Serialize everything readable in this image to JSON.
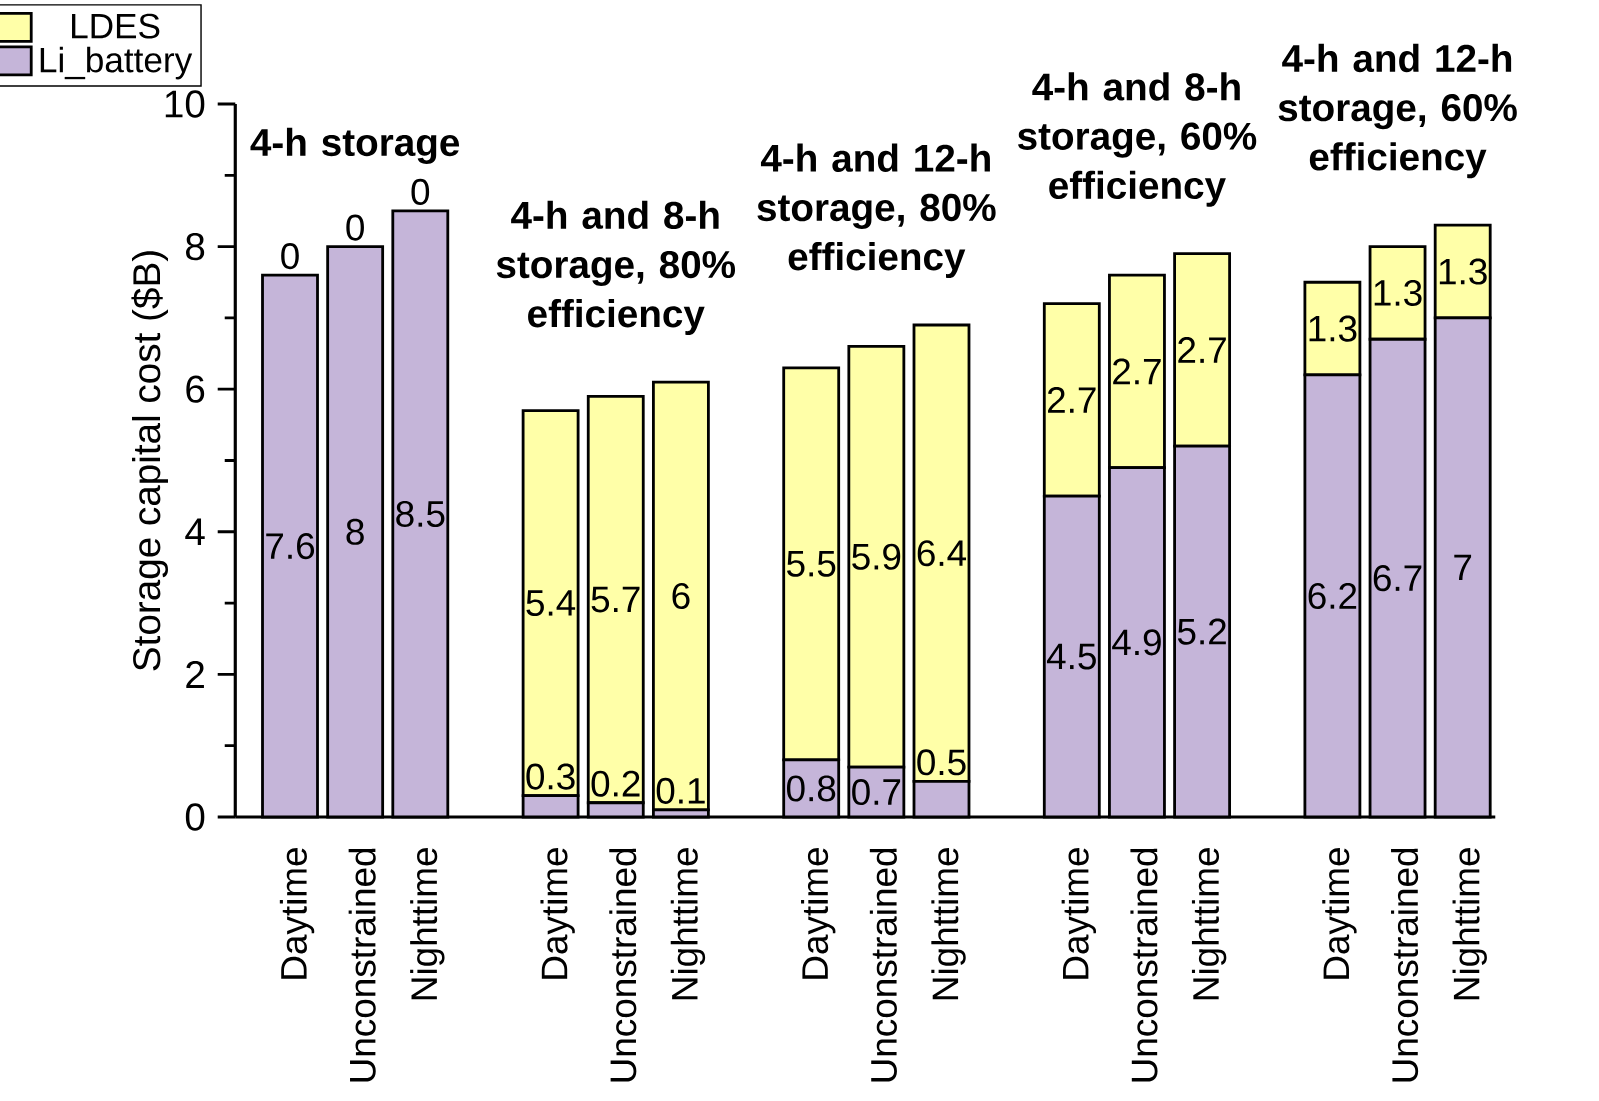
{
  "chart_data": {
    "type": "bar",
    "stacked": true,
    "ylabel": "Storage capital cost  ($B)",
    "categories": [
      "Daytime",
      "Unconstrained",
      "Nighttime",
      null,
      "Daytime",
      "Unconstrained",
      "Nighttime",
      null,
      "Daytime",
      "Unconstrained",
      "Nighttime",
      null,
      "Daytime",
      "Unconstrained",
      "Nighttime",
      null,
      "Daytime",
      "Unconstrained",
      "Nighttime"
    ],
    "series": [
      {
        "name": "Li_battery",
        "color": "#c5b5d9",
        "values": [
          7.6,
          8,
          8.5,
          null,
          0.3,
          0.2,
          0.1,
          null,
          0.8,
          0.7,
          0.5,
          null,
          4.5,
          4.9,
          5.2,
          null,
          6.2,
          6.7,
          7
        ]
      },
      {
        "name": "LDES",
        "color": "#ffffa8",
        "values": [
          0,
          0,
          0,
          null,
          5.4,
          5.7,
          6,
          null,
          5.5,
          5.9,
          6.4,
          null,
          2.7,
          2.7,
          2.7,
          null,
          1.3,
          1.3,
          1.3
        ]
      }
    ],
    "ylim": [
      0,
      10
    ],
    "yticks": [
      0,
      2,
      4,
      6,
      8,
      10
    ],
    "data_labels": true,
    "legend": "top left",
    "grid": false,
    "annotations": [
      "4-h storage",
      "4-h and 8-h storage, 80% efficiency",
      "4-h and 12-h storage, 80% efficiency",
      "4-h and 8-h storage, 60% efficiency",
      "4-h and 12-h storage, 60% efficiency"
    ]
  }
}
